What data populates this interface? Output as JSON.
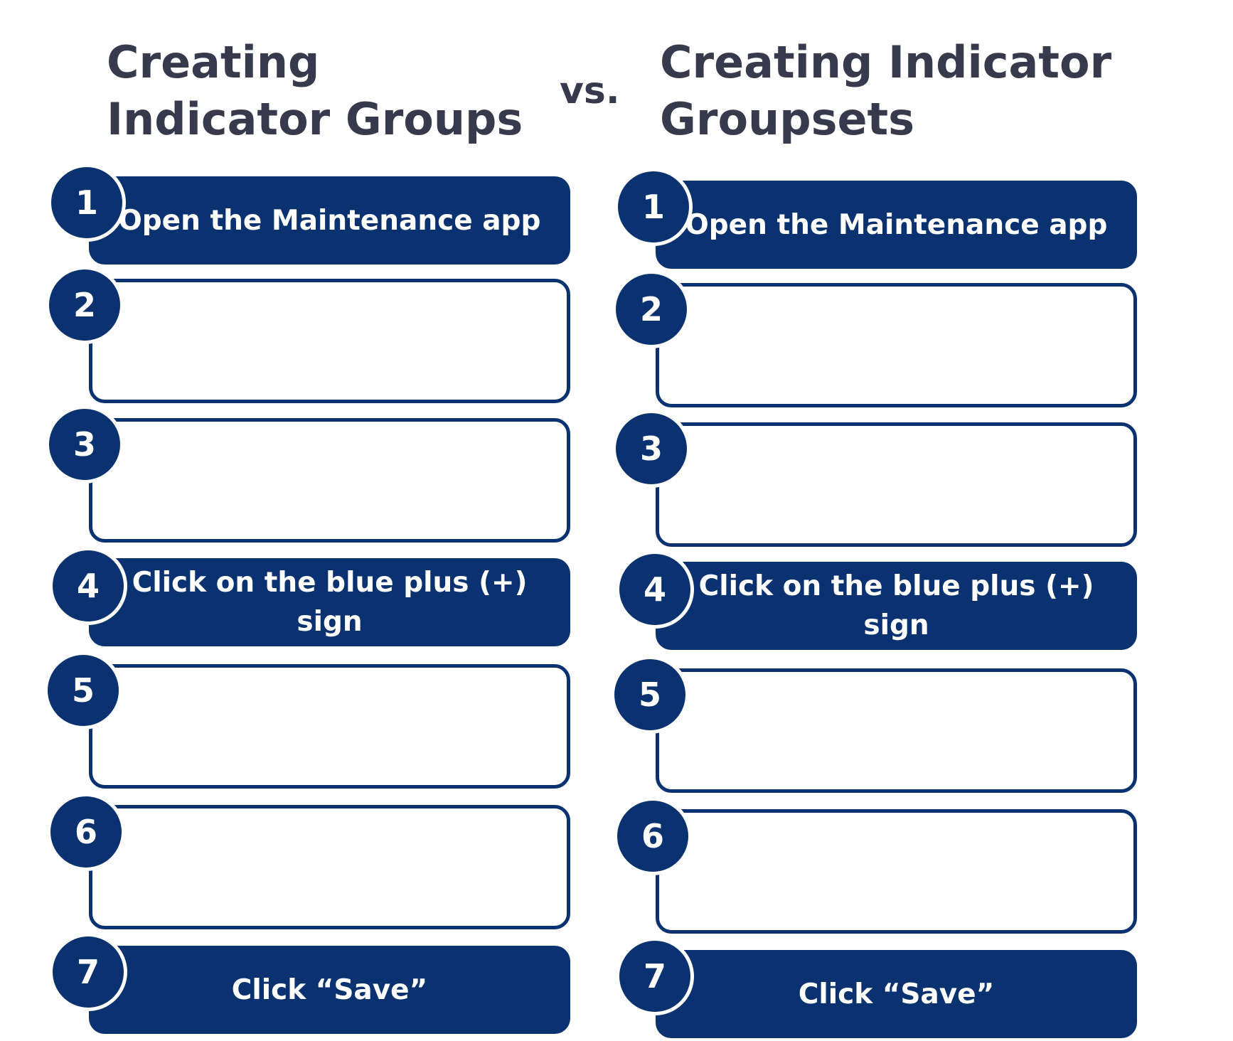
{
  "header": {
    "left_title": "Creating\nIndicator Groups",
    "vs": "vs.",
    "right_title": "Creating Indicator\nGroupsets"
  },
  "columns": [
    {
      "steps": [
        {
          "number": "1",
          "text": "Open the Maintenance app",
          "filled": true
        },
        {
          "number": "2",
          "text": "",
          "filled": false
        },
        {
          "number": "3",
          "text": "",
          "filled": false
        },
        {
          "number": "4",
          "text": "Click on the blue plus (+) sign",
          "filled": true
        },
        {
          "number": "5",
          "text": "",
          "filled": false
        },
        {
          "number": "6",
          "text": "",
          "filled": false
        },
        {
          "number": "7",
          "text": "Click “Save”",
          "filled": true
        }
      ]
    },
    {
      "steps": [
        {
          "number": "1",
          "text": "Open the Maintenance app",
          "filled": true
        },
        {
          "number": "2",
          "text": "",
          "filled": false
        },
        {
          "number": "3",
          "text": "",
          "filled": false
        },
        {
          "number": "4",
          "text": "Click on the blue plus (+) sign",
          "filled": true
        },
        {
          "number": "5",
          "text": "",
          "filled": false
        },
        {
          "number": "6",
          "text": "",
          "filled": false
        },
        {
          "number": "7",
          "text": "Click “Save”",
          "filled": true
        }
      ]
    }
  ],
  "colors": {
    "primary": "#0b3270",
    "title": "#363a4c",
    "background": "#ffffff"
  }
}
